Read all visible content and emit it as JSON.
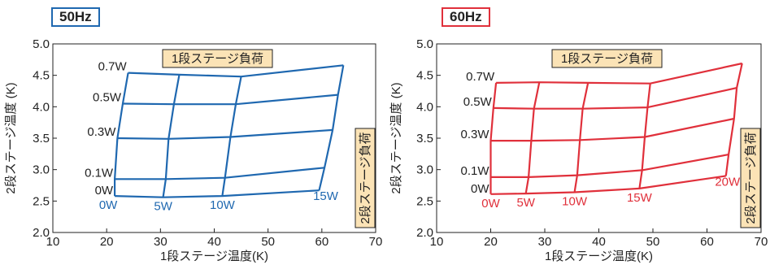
{
  "chart_data": [
    {
      "type": "line",
      "title": "50Hz",
      "xlabel": "1段ステージ温度(K)",
      "ylabel": "2段ステージ温度 (K)",
      "xlim": [
        10,
        70
      ],
      "ylim": [
        2.0,
        5.0
      ],
      "xticks": [
        "10",
        "20",
        "30",
        "40",
        "50",
        "60",
        "70"
      ],
      "yticks": [
        "2.0",
        "2.5",
        "3.0",
        "3.5",
        "4.0",
        "4.5",
        "5.0"
      ],
      "grid": false,
      "color": "#1f68b0",
      "annotation_first_stage": "1段ステージ負荷",
      "annotation_second_stage": "2段ステージ負荷",
      "first_stage_loads": [
        "0W",
        "5W",
        "10W",
        "15W"
      ],
      "second_stage_loads": [
        "0W",
        "0.1W",
        "0.3W",
        "0.5W",
        "0.7W"
      ],
      "grid_points": [
        [
          [
            21.5,
            2.58
          ],
          [
            30.5,
            2.56
          ],
          [
            41.5,
            2.58
          ],
          [
            59.5,
            2.67
          ]
        ],
        [
          [
            21.5,
            2.85
          ],
          [
            31.0,
            2.85
          ],
          [
            42.0,
            2.87
          ],
          [
            60.5,
            3.03
          ]
        ],
        [
          [
            22.0,
            3.5
          ],
          [
            31.5,
            3.49
          ],
          [
            43.0,
            3.52
          ],
          [
            62.0,
            3.63
          ]
        ],
        [
          [
            23.0,
            4.05
          ],
          [
            32.5,
            4.04
          ],
          [
            44.0,
            4.04
          ],
          [
            63.0,
            4.19
          ]
        ],
        [
          [
            24.0,
            4.54
          ],
          [
            33.5,
            4.51
          ],
          [
            45.0,
            4.48
          ],
          [
            64.0,
            4.66
          ]
        ]
      ]
    },
    {
      "type": "line",
      "title": "60Hz",
      "xlabel": "1段ステージ温度(K)",
      "ylabel": "2段ステージ温度 (K)",
      "xlim": [
        10,
        70
      ],
      "ylim": [
        2.0,
        5.0
      ],
      "xticks": [
        "10",
        "20",
        "30",
        "40",
        "50",
        "60",
        "70"
      ],
      "yticks": [
        "2.0",
        "2.5",
        "3.0",
        "3.5",
        "4.0",
        "4.5",
        "5.0"
      ],
      "grid": false,
      "color": "#e0303b",
      "annotation_first_stage": "1段ステージ負荷",
      "annotation_second_stage": "2段ステージ負荷",
      "first_stage_loads": [
        "0W",
        "5W",
        "10W",
        "15W",
        "20W"
      ],
      "second_stage_loads": [
        "0W",
        "0.1W",
        "0.3W",
        "0.5W",
        "0.7W"
      ],
      "grid_points": [
        [
          [
            20.0,
            2.61
          ],
          [
            26.5,
            2.62
          ],
          [
            35.5,
            2.64
          ],
          [
            47.5,
            2.7
          ],
          [
            63.5,
            2.9
          ]
        ],
        [
          [
            20.0,
            2.88
          ],
          [
            27.0,
            2.88
          ],
          [
            36.0,
            2.91
          ],
          [
            48.0,
            2.99
          ],
          [
            64.0,
            3.24
          ]
        ],
        [
          [
            20.0,
            3.46
          ],
          [
            27.5,
            3.46
          ],
          [
            36.5,
            3.47
          ],
          [
            48.5,
            3.52
          ],
          [
            65.0,
            3.81
          ]
        ],
        [
          [
            20.5,
            3.98
          ],
          [
            28.0,
            3.97
          ],
          [
            37.0,
            3.97
          ],
          [
            49.0,
            3.99
          ],
          [
            65.5,
            4.3
          ]
        ],
        [
          [
            21.0,
            4.38
          ],
          [
            29.0,
            4.39
          ],
          [
            38.0,
            4.38
          ],
          [
            49.5,
            4.37
          ],
          [
            66.5,
            4.69
          ]
        ]
      ]
    }
  ]
}
